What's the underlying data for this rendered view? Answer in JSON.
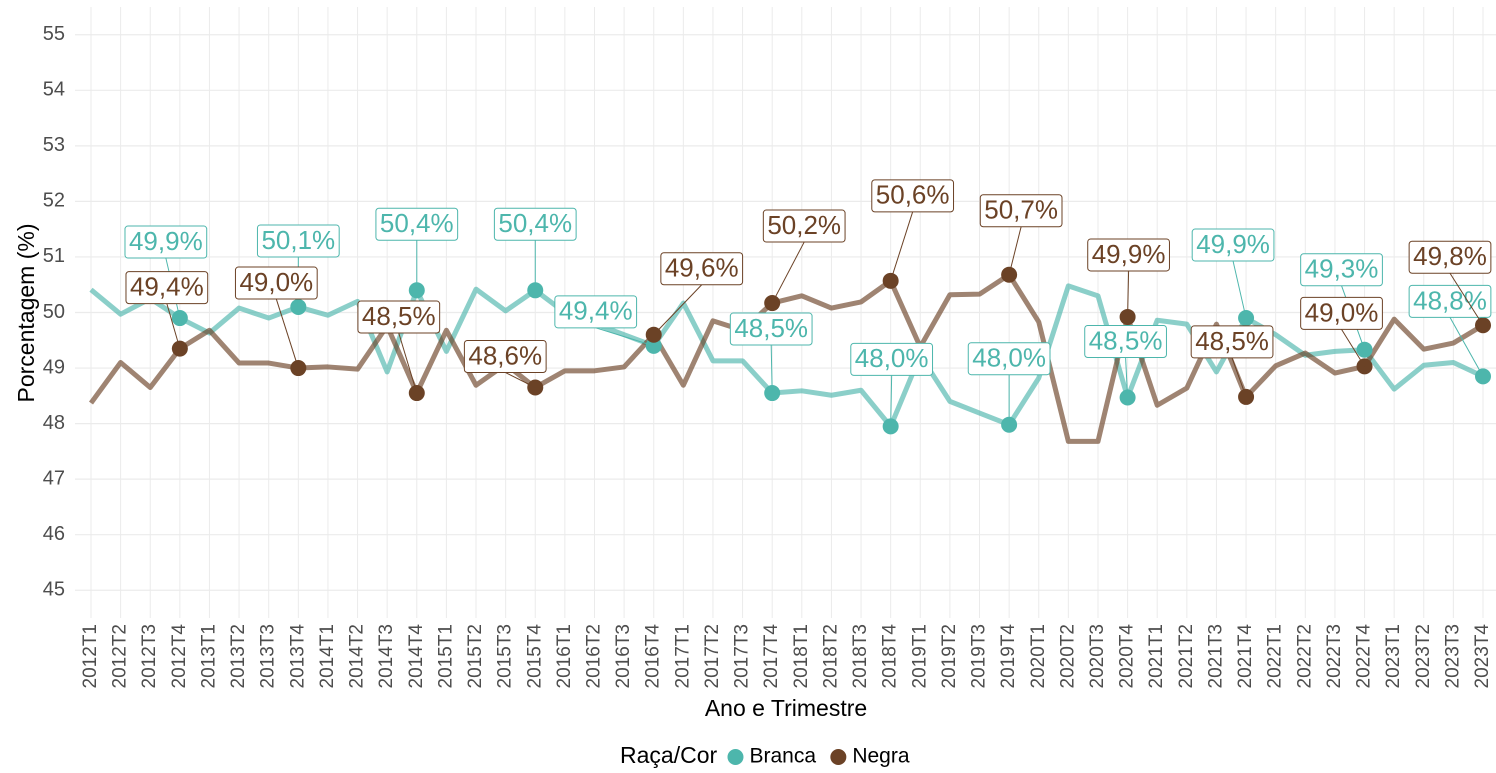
{
  "chart_data": {
    "type": "line",
    "x_label": "Ano e Trimestre",
    "y_label": "Porcentagem (%)",
    "legend_title": "Raça/Cor",
    "legend": "bottom",
    "grid": true,
    "ylim": [
      44.5,
      55.5
    ],
    "yticks": [
      45,
      46,
      47,
      48,
      49,
      50,
      51,
      52,
      53,
      54,
      55
    ],
    "categories": [
      "2012T1",
      "2012T2",
      "2012T3",
      "2012T4",
      "2013T1",
      "2013T2",
      "2013T3",
      "2013T4",
      "2014T1",
      "2014T2",
      "2014T3",
      "2014T4",
      "2015T1",
      "2015T2",
      "2015T3",
      "2015T4",
      "2016T1",
      "2016T2",
      "2016T3",
      "2016T4",
      "2017T1",
      "2017T2",
      "2017T3",
      "2017T4",
      "2018T1",
      "2018T2",
      "2018T3",
      "2018T4",
      "2019T1",
      "2019T2",
      "2019T3",
      "2019T4",
      "2020T1",
      "2020T2",
      "2020T3",
      "2020T4",
      "2021T1",
      "2021T2",
      "2021T3",
      "2021T4",
      "2022T1",
      "2022T2",
      "2022T3",
      "2022T4",
      "2023T1",
      "2023T2",
      "2023T3",
      "2023T4"
    ],
    "series": [
      {
        "name": "Branca",
        "color": "#4DB6AC",
        "values": [
          50.41,
          49.97,
          50.25,
          49.9,
          49.63,
          50.08,
          49.9,
          50.1,
          49.95,
          50.2,
          48.93,
          50.4,
          49.3,
          50.42,
          50.03,
          50.4,
          50.0,
          49.8,
          49.6,
          49.4,
          50.17,
          49.13,
          49.13,
          48.55,
          48.59,
          48.51,
          48.6,
          47.95,
          49.23,
          48.4,
          48.19,
          47.98,
          48.82,
          50.48,
          50.3,
          48.47,
          49.86,
          49.79,
          48.93,
          49.9,
          49.6,
          49.23,
          49.3,
          49.33,
          48.62,
          49.05,
          49.1,
          48.85
        ],
        "value_labels": [
          null,
          null,
          null,
          "49,9%",
          null,
          null,
          null,
          "50,1%",
          null,
          null,
          null,
          "50,4%",
          null,
          null,
          null,
          "50,4%",
          null,
          null,
          null,
          "49,4%",
          null,
          null,
          null,
          "48,5%",
          null,
          null,
          null,
          "48,0%",
          null,
          null,
          null,
          "48,0%",
          null,
          null,
          null,
          "48,5%",
          null,
          null,
          null,
          "49,9%",
          null,
          null,
          null,
          "49,3%",
          null,
          null,
          null,
          "48,8%"
        ]
      },
      {
        "name": "Negra",
        "color": "#6B4226",
        "values": [
          48.37,
          49.1,
          48.65,
          49.35,
          49.68,
          49.09,
          49.09,
          49.0,
          49.02,
          48.98,
          49.76,
          48.55,
          49.68,
          48.69,
          49.07,
          48.65,
          48.95,
          48.95,
          49.02,
          49.6,
          48.69,
          49.85,
          49.68,
          50.17,
          50.3,
          50.08,
          50.19,
          50.57,
          49.38,
          50.32,
          50.33,
          50.68,
          49.83,
          47.68,
          47.68,
          49.92,
          48.33,
          48.64,
          49.79,
          48.48,
          49.04,
          49.27,
          48.91,
          49.03,
          49.88,
          49.34,
          49.45,
          49.77
        ],
        "value_labels": [
          null,
          null,
          null,
          "49,4%",
          null,
          null,
          null,
          "49,0%",
          null,
          null,
          null,
          "48,5%",
          null,
          null,
          null,
          "48,6%",
          null,
          null,
          null,
          "49,6%",
          null,
          null,
          null,
          "50,2%",
          null,
          null,
          null,
          "50,6%",
          null,
          null,
          null,
          "50,7%",
          null,
          null,
          null,
          "49,9%",
          null,
          null,
          null,
          "48,5%",
          null,
          null,
          null,
          "49,0%",
          null,
          null,
          null,
          "49,8%"
        ]
      }
    ]
  }
}
